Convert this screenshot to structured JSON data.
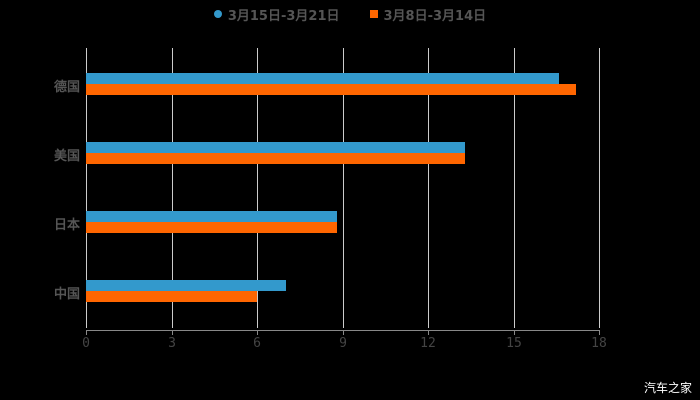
{
  "chart_data": {
    "type": "bar",
    "orientation": "horizontal",
    "categories": [
      "德国",
      "美国",
      "日本",
      "中国"
    ],
    "series": [
      {
        "name": "3月15日-3月21日",
        "color": "#3399cc",
        "values": [
          16.6,
          13.3,
          8.8,
          7.0
        ]
      },
      {
        "name": "3月8日-3月14日",
        "color": "#ff6600",
        "values": [
          17.2,
          13.3,
          8.8,
          6.0
        ]
      }
    ],
    "xlim": [
      0,
      18
    ],
    "xticks": [
      "0",
      "3",
      "6",
      "9",
      "12",
      "15",
      "18"
    ],
    "grid": true,
    "legend_position": "top",
    "title": "",
    "xlabel": "",
    "ylabel": ""
  },
  "legend": {
    "items": [
      {
        "label": "3月15日-3月21日",
        "color": "#3399cc"
      },
      {
        "label": "3月8日-3月14日",
        "color": "#ff6600"
      }
    ]
  },
  "watermark": "汽车之家"
}
